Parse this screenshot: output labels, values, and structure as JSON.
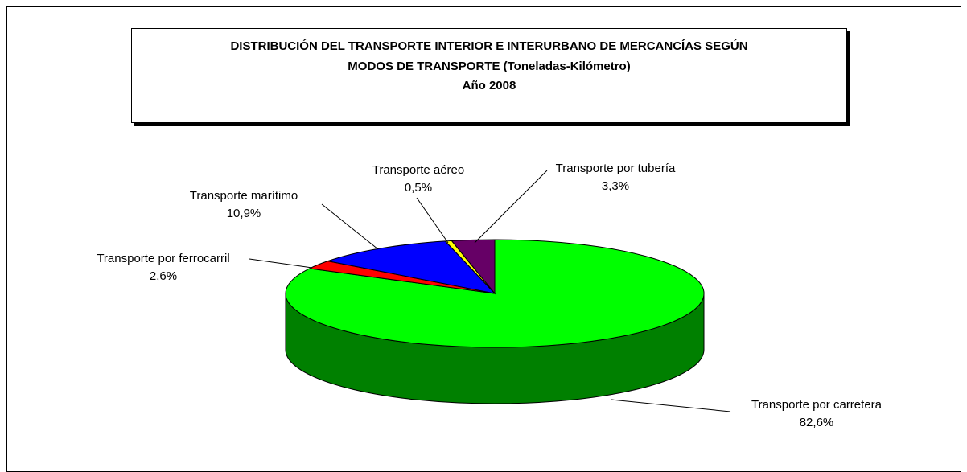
{
  "chart_data": {
    "type": "pie3d",
    "title": [
      "DISTRIBUCIÓN DEL TRANSPORTE INTERIOR E INTERURBANO DE MERCANCÍAS SEGÚN",
      "MODOS DE TRANSPORTE (Toneladas-Kilómetro)",
      "Año 2008"
    ],
    "categories": [
      "Transporte por carretera",
      "Transporte por ferrocarril",
      "Transporte marítimo",
      "Transporte aéreo",
      "Transporte por tubería"
    ],
    "values": [
      82.6,
      2.6,
      10.9,
      0.5,
      3.3
    ],
    "value_labels": [
      "82,6%",
      "2,6%",
      "10,9%",
      "0,5%",
      "3,3%"
    ],
    "colors": [
      "#00ff00",
      "#ff0000",
      "#0000ff",
      "#ffff00",
      "#660066"
    ]
  }
}
